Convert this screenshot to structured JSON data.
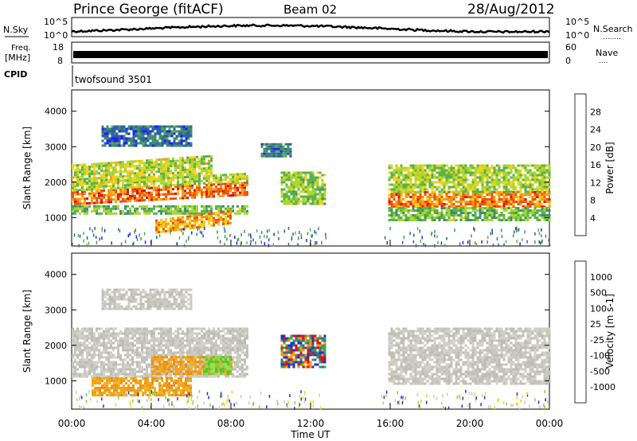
{
  "header": {
    "station": "Prince George (fitACF)",
    "beam": "Beam 02",
    "date": "28/Aug/2012"
  },
  "strips": {
    "nsky_label": "N.Sky",
    "nsearch_label": "N.Search",
    "nsearch_dots": "........",
    "nsky_ticks": [
      "10^5",
      "10^0"
    ],
    "nsearch_ticks": [
      "10^5",
      "10^0"
    ],
    "freq_label_line1": "Freq.",
    "freq_label_line2": "[MHz]",
    "freq_ticks": [
      "18",
      "8"
    ],
    "nave_label": "Nave",
    "nave_dots": "....",
    "nave_ticks": [
      "60",
      "0"
    ],
    "cpid_label": "CPID",
    "cpid_value": "twofsound 3501"
  },
  "chart_data": [
    {
      "type": "heatmap",
      "title": "",
      "xlabel": "Time UT",
      "ylabel": "Slant Range [km]",
      "x_ticks": [
        "00:00",
        "04:00",
        "08:00",
        "12:00",
        "16:00",
        "20:00",
        "00:00"
      ],
      "x_range_hours": [
        0,
        24
      ],
      "y_ticks": [
        1000,
        2000,
        3000,
        4000
      ],
      "y_range_km": [
        200,
        4600
      ],
      "colorbar": {
        "label": "Power [dB]",
        "ticks": [
          "28",
          "24",
          "20",
          "16",
          "12",
          "8",
          "4"
        ],
        "range": [
          0,
          30
        ],
        "colors": [
          "#1f1fff",
          "#2e5fa8",
          "#3f8f6a",
          "#58b348",
          "#a8d632",
          "#f2d21a",
          "#f59a10",
          "#ee5310",
          "#e01010"
        ]
      },
      "bands": [
        {
          "t0": 0.0,
          "t1": 8.8,
          "r0": 1350,
          "r1": 1750,
          "level": 25
        },
        {
          "t0": 0.0,
          "t1": 8.8,
          "r0": 1100,
          "r1": 1350,
          "level": 12
        },
        {
          "t0": 0.0,
          "t1": 8.8,
          "r0": 1750,
          "r1": 2000,
          "level": 15
        },
        {
          "t0": 0.0,
          "t1": 7.0,
          "r0": 1900,
          "r1": 2500,
          "level": 16
        },
        {
          "t0": 4.2,
          "t1": 8.0,
          "r0": 550,
          "r1": 950,
          "level": 22
        },
        {
          "t0": 10.5,
          "t1": 12.7,
          "r0": 1400,
          "r1": 2300,
          "level": 14
        },
        {
          "t0": 15.9,
          "t1": 24.0,
          "r0": 1300,
          "r1": 1750,
          "level": 24
        },
        {
          "t0": 15.9,
          "t1": 24.0,
          "r0": 950,
          "r1": 1300,
          "level": 12
        },
        {
          "t0": 15.9,
          "t1": 24.0,
          "r0": 1750,
          "r1": 2500,
          "level": 15
        },
        {
          "t0": 1.5,
          "t1": 6.0,
          "r0": 3000,
          "r1": 3600,
          "level": 5
        },
        {
          "t0": 9.5,
          "t1": 11.0,
          "r0": 2700,
          "r1": 3100,
          "level": 6
        }
      ]
    },
    {
      "type": "heatmap",
      "title": "",
      "xlabel": "Time UT",
      "ylabel": "Slant Range [km]",
      "x_ticks": [
        "00:00",
        "04:00",
        "08:00",
        "12:00",
        "16:00",
        "20:00",
        "00:00"
      ],
      "x_range_hours": [
        0,
        24
      ],
      "y_ticks": [
        1000,
        2000,
        3000,
        4000
      ],
      "y_range_km": [
        200,
        4600
      ],
      "colorbar": {
        "label": "Velocity [m s-1]",
        "ticks": [
          "1000",
          "500",
          "100",
          "25",
          "-25",
          "-100",
          "-500",
          "-1000"
        ],
        "colors": [
          "#2233cc",
          "#2f6f96",
          "#3f9f5a",
          "#7cd43a",
          "#c8c8c0",
          "#f0d220",
          "#f59a10",
          "#ee5310",
          "#e01010"
        ]
      },
      "bands": [
        {
          "t0": 0.0,
          "t1": 8.8,
          "r0": 1100,
          "r1": 2500,
          "level": "grey"
        },
        {
          "t0": 4.0,
          "t1": 8.0,
          "r0": 1200,
          "r1": 1700,
          "level": "orange"
        },
        {
          "t0": 6.6,
          "t1": 8.0,
          "r0": 1200,
          "r1": 1700,
          "level": "green"
        },
        {
          "t0": 1.0,
          "t1": 6.0,
          "r0": 600,
          "r1": 1100,
          "level": "orange"
        },
        {
          "t0": 10.5,
          "t1": 12.7,
          "r0": 1400,
          "r1": 2300,
          "level": "mixed"
        },
        {
          "t0": 15.9,
          "t1": 24.0,
          "r0": 900,
          "r1": 2500,
          "level": "grey"
        },
        {
          "t0": 1.5,
          "t1": 6.0,
          "r0": 3000,
          "r1": 3600,
          "level": "grey"
        }
      ]
    }
  ]
}
